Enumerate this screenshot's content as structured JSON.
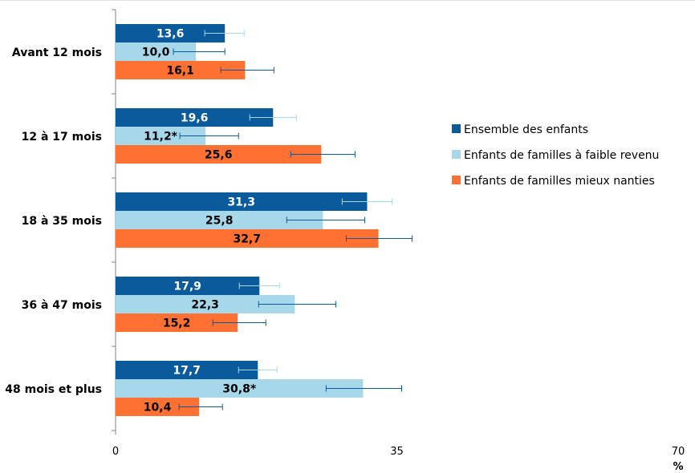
{
  "chart_data": {
    "type": "bar",
    "orientation": "horizontal",
    "categories": [
      "Avant 12 mois",
      "12 à 17 mois",
      "18 à 35 mois",
      "36 à 47 mois",
      "48 mois et plus"
    ],
    "series": [
      {
        "name": "Ensemble des enfants",
        "color": "#0a5a9c",
        "label_color": "#ffffff",
        "values": [
          13.6,
          19.6,
          31.3,
          17.9,
          17.7
        ],
        "labels": [
          "13,6",
          "19,6",
          "31,3",
          "17,9",
          "17,7"
        ],
        "error_low": [
          11.1,
          16.7,
          28.2,
          15.4,
          15.3
        ],
        "error_high": [
          16.0,
          22.5,
          34.4,
          20.4,
          20.1
        ],
        "error_color": "#a6d8ea"
      },
      {
        "name": "Enfants de familles à faible revenu",
        "color": "#a6d8ea",
        "label_color": "#000000",
        "values": [
          10.0,
          11.2,
          25.8,
          22.3,
          30.8
        ],
        "labels": [
          "10,0",
          "11,2*",
          "25,8",
          "22,3",
          "30,8*"
        ],
        "error_low": [
          7.2,
          8.0,
          21.3,
          17.8,
          26.2
        ],
        "error_high": [
          13.6,
          15.3,
          31.0,
          27.4,
          35.6
        ],
        "error_color": "#0a5a9c"
      },
      {
        "name": "Enfants de familles mieux nanties",
        "color": "#ff7033",
        "label_color": "#000000",
        "values": [
          16.1,
          25.6,
          32.7,
          15.2,
          10.4
        ],
        "labels": [
          "16,1",
          "25,6",
          "32,7",
          "15,2",
          "10,4"
        ],
        "error_low": [
          13.1,
          21.8,
          28.7,
          12.1,
          7.9
        ],
        "error_high": [
          19.7,
          29.8,
          36.9,
          18.7,
          13.3
        ],
        "error_color": "#0a5a9c"
      }
    ],
    "xlim": [
      0,
      70
    ],
    "xticks": [
      0,
      35,
      70
    ],
    "xtick_labels": [
      "0",
      "35",
      "70"
    ],
    "xunit": "%",
    "legend_position": "right",
    "grid": false
  }
}
